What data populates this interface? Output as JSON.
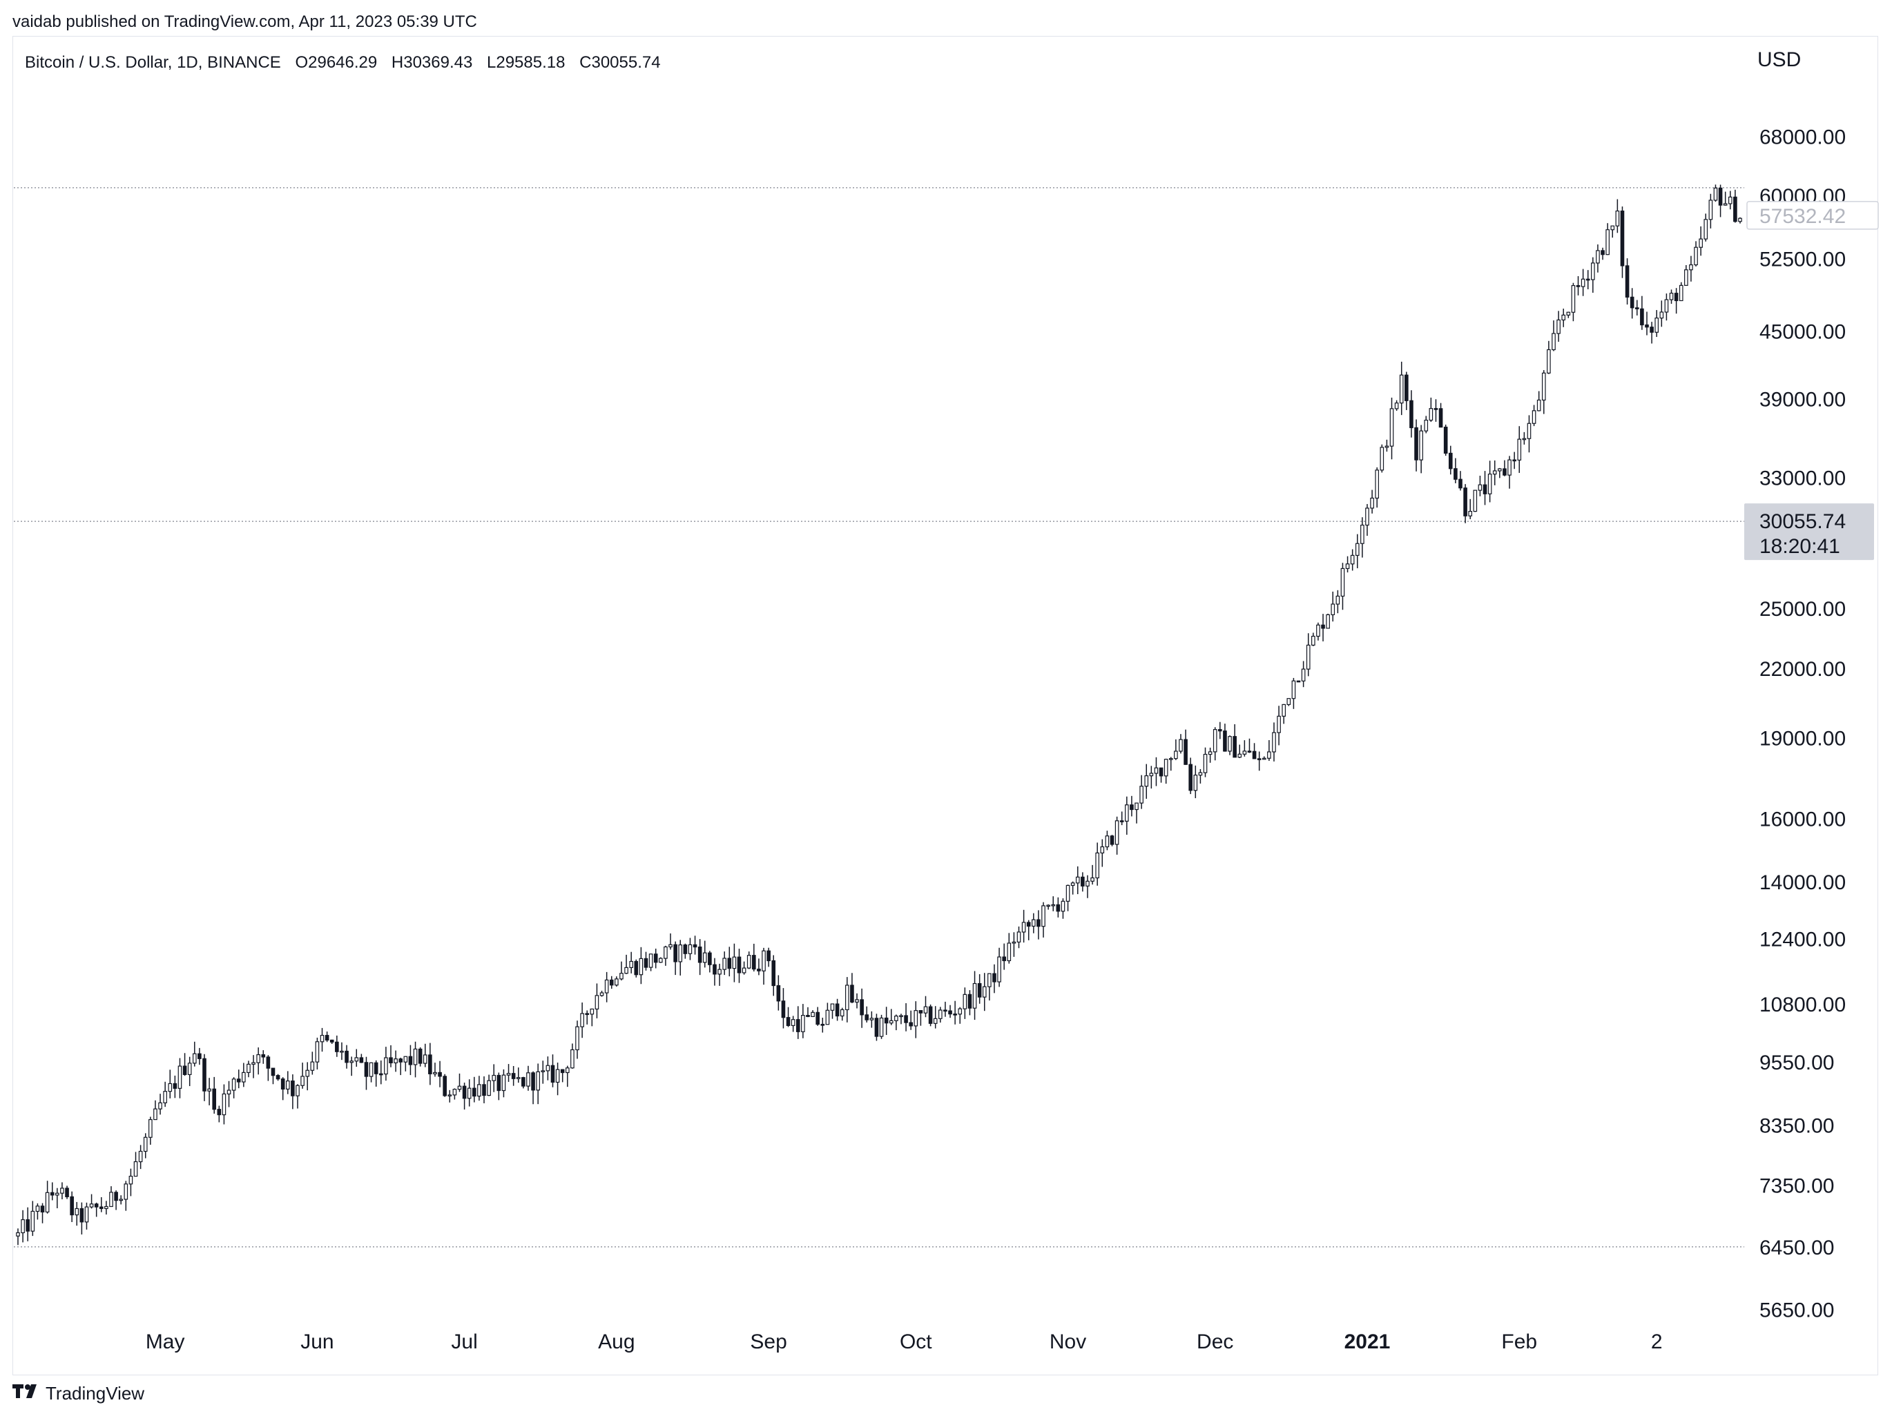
{
  "header": {
    "publisher": "vaidab published on TradingView.com, Apr 11, 2023 05:39 UTC"
  },
  "legend": {
    "symbol": "Bitcoin / U.S. Dollar, 1D, BINANCE",
    "open": "O29646.29",
    "high": "H30369.43",
    "low": "L29585.18",
    "close": "C30055.74"
  },
  "brand": {
    "label": "TradingView",
    "icon": "tradingview-logo-icon"
  },
  "colors": {
    "candle": "#131722",
    "up_fill": "#ffffff",
    "down_fill": "#131722",
    "last_price_badge": "#d1d4dc",
    "gridline_dotted": "#9598a1"
  },
  "chart_data": {
    "type": "candlestick",
    "scale": "log",
    "currency": "USD",
    "ylim": [
      5300,
      74000
    ],
    "y_ticks": [
      "68000.00",
      "60000.00",
      "52500.00",
      "45000.00",
      "39000.00",
      "33000.00",
      "25000.00",
      "22000.00",
      "19000.00",
      "16000.00",
      "14000.00",
      "12400.00",
      "10800.00",
      "9550.00",
      "8350.00",
      "7350.00",
      "6450.00",
      "5650.00"
    ],
    "x_ticks": [
      {
        "date": "2020-05-01",
        "label": "May",
        "bold": false
      },
      {
        "date": "2020-06-01",
        "label": "Jun",
        "bold": false
      },
      {
        "date": "2020-07-01",
        "label": "Jul",
        "bold": false
      },
      {
        "date": "2020-08-01",
        "label": "Aug",
        "bold": false
      },
      {
        "date": "2020-09-01",
        "label": "Sep",
        "bold": false
      },
      {
        "date": "2020-10-01",
        "label": "Oct",
        "bold": false
      },
      {
        "date": "2020-11-01",
        "label": "Nov",
        "bold": false
      },
      {
        "date": "2020-12-01",
        "label": "Dec",
        "bold": false
      },
      {
        "date": "2021-01-01",
        "label": "2021",
        "bold": true
      },
      {
        "date": "2021-02-01",
        "label": "Feb",
        "bold": false
      },
      {
        "date": "2021-03-01",
        "label": "2",
        "bold": false
      }
    ],
    "date_range": [
      "2020-04-01",
      "2021-03-18"
    ],
    "price_line_label": "57532.42",
    "last_price": {
      "value": "30055.74",
      "countdown": "18:20:41"
    },
    "horizontal_levels": [
      61000,
      30055.74,
      6450
    ],
    "anchors": [
      {
        "date": "2020-04-01",
        "price": 6600
      },
      {
        "date": "2020-04-09",
        "price": 7300
      },
      {
        "date": "2020-04-13",
        "price": 6850
      },
      {
        "date": "2020-04-20",
        "price": 7100
      },
      {
        "date": "2020-04-24",
        "price": 7500
      },
      {
        "date": "2020-04-30",
        "price": 8700
      },
      {
        "date": "2020-05-07",
        "price": 9800
      },
      {
        "date": "2020-05-11",
        "price": 8600
      },
      {
        "date": "2020-05-19",
        "price": 9700
      },
      {
        "date": "2020-05-27",
        "price": 9000
      },
      {
        "date": "2020-06-02",
        "price": 10000
      },
      {
        "date": "2020-06-11",
        "price": 9300
      },
      {
        "date": "2020-06-22",
        "price": 9650
      },
      {
        "date": "2020-06-27",
        "price": 9000
      },
      {
        "date": "2020-07-05",
        "price": 9050
      },
      {
        "date": "2020-07-15",
        "price": 9200
      },
      {
        "date": "2020-07-21",
        "price": 9350
      },
      {
        "date": "2020-07-27",
        "price": 10900
      },
      {
        "date": "2020-08-01",
        "price": 11600
      },
      {
        "date": "2020-08-17",
        "price": 12200
      },
      {
        "date": "2020-08-21",
        "price": 11600
      },
      {
        "date": "2020-09-01",
        "price": 11900
      },
      {
        "date": "2020-09-04",
        "price": 10400
      },
      {
        "date": "2020-09-12",
        "price": 10400
      },
      {
        "date": "2020-09-17",
        "price": 11000
      },
      {
        "date": "2020-09-23",
        "price": 10300
      },
      {
        "date": "2020-10-08",
        "price": 10600
      },
      {
        "date": "2020-10-16",
        "price": 11300
      },
      {
        "date": "2020-10-21",
        "price": 12400
      },
      {
        "date": "2020-11-05",
        "price": 14100
      },
      {
        "date": "2020-11-13",
        "price": 16300
      },
      {
        "date": "2020-11-24",
        "price": 18900
      },
      {
        "date": "2020-11-26",
        "price": 17200
      },
      {
        "date": "2020-12-01",
        "price": 19000
      },
      {
        "date": "2020-12-11",
        "price": 18000
      },
      {
        "date": "2020-12-16",
        "price": 21000
      },
      {
        "date": "2020-12-26",
        "price": 26000
      },
      {
        "date": "2021-01-02",
        "price": 32000
      },
      {
        "date": "2021-01-08",
        "price": 40500
      },
      {
        "date": "2021-01-11",
        "price": 35000
      },
      {
        "date": "2021-01-14",
        "price": 39000
      },
      {
        "date": "2021-01-21",
        "price": 31000
      },
      {
        "date": "2021-01-29",
        "price": 33500
      },
      {
        "date": "2021-02-04",
        "price": 37500
      },
      {
        "date": "2021-02-09",
        "price": 46000
      },
      {
        "date": "2021-02-21",
        "price": 57000
      },
      {
        "date": "2021-02-23",
        "price": 48000
      },
      {
        "date": "2021-02-28",
        "price": 45500
      },
      {
        "date": "2021-03-08",
        "price": 51000
      },
      {
        "date": "2021-03-13",
        "price": 60500
      },
      {
        "date": "2021-03-18",
        "price": 57500
      }
    ]
  }
}
